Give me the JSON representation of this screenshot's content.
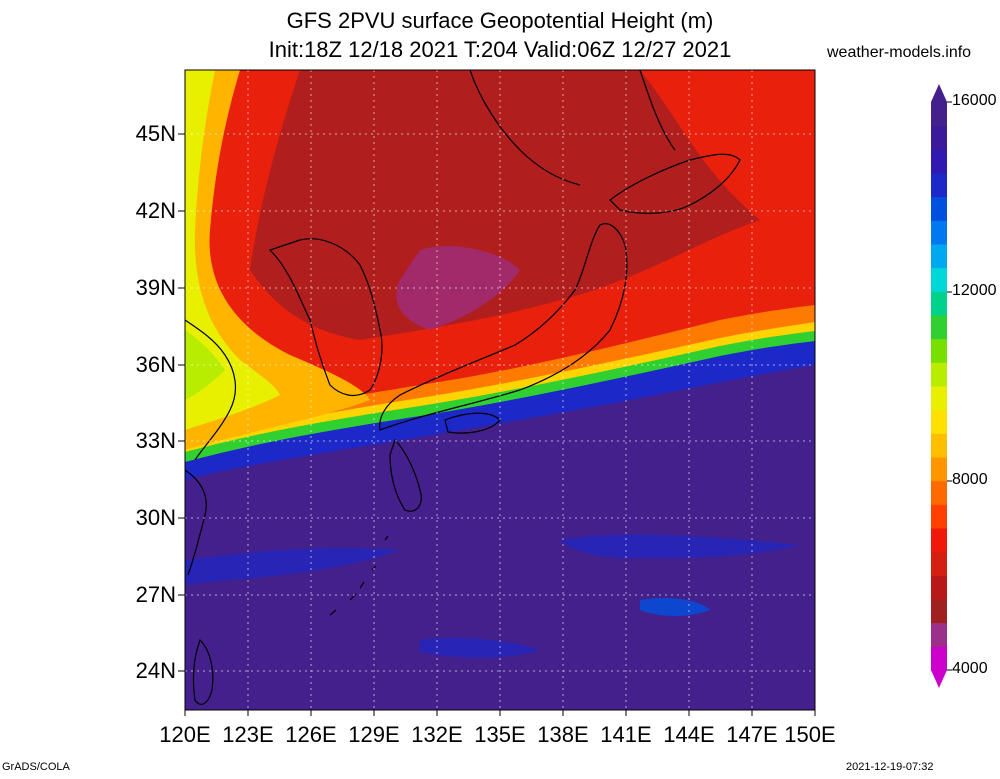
{
  "title_line1": "GFS 2PVU surface Geopotential Height (m)",
  "title_line2": "Init:18Z 12/18 2021 T:204 Valid:06Z 12/27 2021",
  "site": "weather-models.info",
  "footer_left": "GrADS/COLA",
  "footer_right": "2021-12-19-07:32",
  "lat_labels": [
    "45N",
    "42N",
    "39N",
    "36N",
    "33N",
    "30N",
    "27N",
    "24N"
  ],
  "lon_labels": [
    "120E",
    "123E",
    "126E",
    "129E",
    "132E",
    "135E",
    "138E",
    "141E",
    "144E",
    "147E",
    "150E"
  ],
  "colorbar": {
    "labels": [
      "16000",
      "12000",
      "8000",
      "4000"
    ],
    "colors": [
      "#cc00cc",
      "#9c2f8a",
      "#a02020",
      "#b81818",
      "#d42010",
      "#f01808",
      "#ff4000",
      "#ff6a00",
      "#ff9600",
      "#ffbe00",
      "#ffe000",
      "#e8f000",
      "#b8ec00",
      "#78e000",
      "#30d030",
      "#00d28c",
      "#00d8d8",
      "#00a8f0",
      "#0078f0",
      "#0050e0",
      "#1c28c8",
      "#3018b0",
      "#3a1a98",
      "#44208c"
    ]
  },
  "map": {
    "region": "East Asia / Japan",
    "lon_range": [
      120,
      150
    ],
    "lat_range": [
      22.5,
      47.5
    ],
    "grid": true
  }
}
